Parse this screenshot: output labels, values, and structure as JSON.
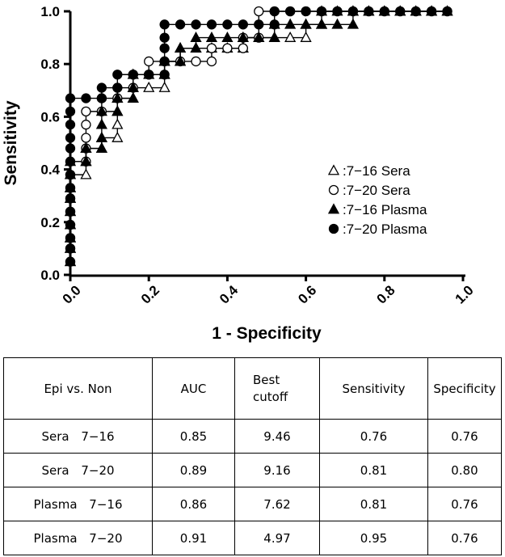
{
  "chart_data": {
    "type": "line",
    "title": "",
    "xlabel": "1 - Specificity",
    "ylabel": "Sensitivity",
    "xlim": [
      0,
      1
    ],
    "ylim": [
      0,
      1
    ],
    "x_ticks": [
      "0.0",
      "0.2",
      "0.4",
      "0.6",
      "0.8",
      "1.0"
    ],
    "y_ticks": [
      "0.0",
      "0.2",
      "0.4",
      "0.6",
      "0.8",
      "1.0"
    ],
    "grid": false,
    "legend_position": "right",
    "series": [
      {
        "name": "7-16 Sera",
        "marker": "open-triangle",
        "points": [
          [
            0,
            0.05
          ],
          [
            0,
            0.1
          ],
          [
            0,
            0.14
          ],
          [
            0,
            0.19
          ],
          [
            0,
            0.24
          ],
          [
            0,
            0.29
          ],
          [
            0,
            0.33
          ],
          [
            0,
            0.38
          ],
          [
            0.04,
            0.38
          ],
          [
            0.04,
            0.43
          ],
          [
            0.04,
            0.48
          ],
          [
            0.08,
            0.48
          ],
          [
            0.08,
            0.52
          ],
          [
            0.12,
            0.52
          ],
          [
            0.12,
            0.57
          ],
          [
            0.12,
            0.62
          ],
          [
            0.12,
            0.67
          ],
          [
            0.16,
            0.67
          ],
          [
            0.16,
            0.71
          ],
          [
            0.2,
            0.71
          ],
          [
            0.24,
            0.71
          ],
          [
            0.24,
            0.76
          ],
          [
            0.24,
            0.81
          ],
          [
            0.28,
            0.81
          ],
          [
            0.28,
            0.86
          ],
          [
            0.32,
            0.86
          ],
          [
            0.36,
            0.86
          ],
          [
            0.4,
            0.86
          ],
          [
            0.44,
            0.86
          ],
          [
            0.44,
            0.9
          ],
          [
            0.48,
            0.9
          ],
          [
            0.52,
            0.9
          ],
          [
            0.56,
            0.9
          ],
          [
            0.6,
            0.9
          ],
          [
            0.6,
            0.95
          ],
          [
            0.64,
            0.95
          ],
          [
            0.64,
            1.0
          ],
          [
            0.68,
            1.0
          ],
          [
            0.72,
            1.0
          ],
          [
            0.76,
            1.0
          ],
          [
            0.8,
            1.0
          ],
          [
            0.84,
            1.0
          ],
          [
            0.88,
            1.0
          ],
          [
            0.92,
            1.0
          ],
          [
            0.96,
            1.0
          ]
        ]
      },
      {
        "name": "7-20 Sera",
        "marker": "open-circle",
        "points": [
          [
            0,
            0.05
          ],
          [
            0,
            0.1
          ],
          [
            0,
            0.14
          ],
          [
            0,
            0.19
          ],
          [
            0,
            0.24
          ],
          [
            0,
            0.29
          ],
          [
            0,
            0.33
          ],
          [
            0,
            0.38
          ],
          [
            0,
            0.43
          ],
          [
            0.04,
            0.43
          ],
          [
            0.04,
            0.48
          ],
          [
            0.04,
            0.52
          ],
          [
            0.04,
            0.57
          ],
          [
            0.04,
            0.62
          ],
          [
            0.08,
            0.62
          ],
          [
            0.08,
            0.67
          ],
          [
            0.12,
            0.67
          ],
          [
            0.12,
            0.71
          ],
          [
            0.16,
            0.71
          ],
          [
            0.16,
            0.76
          ],
          [
            0.2,
            0.76
          ],
          [
            0.2,
            0.81
          ],
          [
            0.24,
            0.81
          ],
          [
            0.28,
            0.81
          ],
          [
            0.32,
            0.81
          ],
          [
            0.36,
            0.81
          ],
          [
            0.36,
            0.86
          ],
          [
            0.4,
            0.86
          ],
          [
            0.44,
            0.86
          ],
          [
            0.44,
            0.9
          ],
          [
            0.48,
            0.9
          ],
          [
            0.48,
            1.0
          ],
          [
            0.52,
            1.0
          ],
          [
            0.56,
            1.0
          ],
          [
            0.6,
            1.0
          ],
          [
            0.64,
            1.0
          ],
          [
            0.68,
            1.0
          ],
          [
            0.72,
            1.0
          ],
          [
            0.76,
            1.0
          ],
          [
            0.8,
            1.0
          ],
          [
            0.84,
            1.0
          ],
          [
            0.88,
            1.0
          ],
          [
            0.92,
            1.0
          ],
          [
            0.96,
            1.0
          ]
        ]
      },
      {
        "name": "7-16 Plasma",
        "marker": "filled-triangle",
        "points": [
          [
            0,
            0.05
          ],
          [
            0,
            0.1
          ],
          [
            0,
            0.14
          ],
          [
            0,
            0.19
          ],
          [
            0,
            0.24
          ],
          [
            0,
            0.29
          ],
          [
            0,
            0.33
          ],
          [
            0,
            0.38
          ],
          [
            0,
            0.43
          ],
          [
            0.04,
            0.43
          ],
          [
            0.04,
            0.48
          ],
          [
            0.08,
            0.48
          ],
          [
            0.08,
            0.52
          ],
          [
            0.08,
            0.57
          ],
          [
            0.08,
            0.62
          ],
          [
            0.12,
            0.62
          ],
          [
            0.12,
            0.67
          ],
          [
            0.16,
            0.67
          ],
          [
            0.16,
            0.71
          ],
          [
            0.16,
            0.76
          ],
          [
            0.2,
            0.76
          ],
          [
            0.24,
            0.76
          ],
          [
            0.24,
            0.81
          ],
          [
            0.28,
            0.81
          ],
          [
            0.28,
            0.86
          ],
          [
            0.32,
            0.86
          ],
          [
            0.32,
            0.9
          ],
          [
            0.36,
            0.9
          ],
          [
            0.4,
            0.9
          ],
          [
            0.44,
            0.9
          ],
          [
            0.48,
            0.9
          ],
          [
            0.52,
            0.9
          ],
          [
            0.52,
            0.95
          ],
          [
            0.56,
            0.95
          ],
          [
            0.6,
            0.95
          ],
          [
            0.64,
            0.95
          ],
          [
            0.68,
            0.95
          ],
          [
            0.72,
            0.95
          ],
          [
            0.72,
            1.0
          ],
          [
            0.76,
            1.0
          ],
          [
            0.8,
            1.0
          ],
          [
            0.84,
            1.0
          ],
          [
            0.88,
            1.0
          ],
          [
            0.92,
            1.0
          ],
          [
            0.96,
            1.0
          ]
        ]
      },
      {
        "name": "7-20 Plasma",
        "marker": "filled-circle",
        "points": [
          [
            0,
            0.05
          ],
          [
            0,
            0.1
          ],
          [
            0,
            0.14
          ],
          [
            0,
            0.19
          ],
          [
            0,
            0.24
          ],
          [
            0,
            0.29
          ],
          [
            0,
            0.33
          ],
          [
            0,
            0.38
          ],
          [
            0,
            0.43
          ],
          [
            0,
            0.48
          ],
          [
            0,
            0.52
          ],
          [
            0,
            0.57
          ],
          [
            0,
            0.62
          ],
          [
            0,
            0.67
          ],
          [
            0.04,
            0.67
          ],
          [
            0.08,
            0.67
          ],
          [
            0.08,
            0.71
          ],
          [
            0.12,
            0.71
          ],
          [
            0.12,
            0.76
          ],
          [
            0.16,
            0.76
          ],
          [
            0.2,
            0.76
          ],
          [
            0.24,
            0.76
          ],
          [
            0.24,
            0.81
          ],
          [
            0.24,
            0.86
          ],
          [
            0.24,
            0.9
          ],
          [
            0.24,
            0.95
          ],
          [
            0.28,
            0.95
          ],
          [
            0.32,
            0.95
          ],
          [
            0.36,
            0.95
          ],
          [
            0.4,
            0.95
          ],
          [
            0.44,
            0.95
          ],
          [
            0.48,
            0.95
          ],
          [
            0.52,
            0.95
          ],
          [
            0.52,
            1.0
          ],
          [
            0.56,
            1.0
          ],
          [
            0.6,
            1.0
          ],
          [
            0.64,
            1.0
          ],
          [
            0.68,
            1.0
          ],
          [
            0.72,
            1.0
          ],
          [
            0.76,
            1.0
          ],
          [
            0.8,
            1.0
          ],
          [
            0.84,
            1.0
          ],
          [
            0.88,
            1.0
          ],
          [
            0.92,
            1.0
          ],
          [
            0.96,
            1.0
          ]
        ]
      }
    ],
    "legend": [
      {
        "symbol": "open-triangle",
        "label": ":7−16 Sera"
      },
      {
        "symbol": "open-circle",
        "label": ":7−20 Sera"
      },
      {
        "symbol": "filled-triangle",
        "label": ":7−16 Plasma"
      },
      {
        "symbol": "filled-circle",
        "label": ":7−20 Plasma"
      }
    ]
  },
  "table": {
    "headers": [
      "Epi vs. Non",
      "AUC",
      "Best cutoff",
      "Sensitivity",
      "Specificity"
    ],
    "rows": [
      {
        "label": "Sera 7−16",
        "auc": "0.85",
        "cutoff": "9.46",
        "sensitivity": "0.76",
        "specificity": "0.76"
      },
      {
        "label": "Sera 7−20",
        "auc": "0.89",
        "cutoff": "9.16",
        "sensitivity": "0.81",
        "specificity": "0.80"
      },
      {
        "label": "Plasma 7−16",
        "auc": "0.86",
        "cutoff": "7.62",
        "sensitivity": "0.81",
        "specificity": "0.76"
      },
      {
        "label": "Plasma 7−20",
        "auc": "0.91",
        "cutoff": "4.97",
        "sensitivity": "0.95",
        "specificity": "0.76"
      }
    ]
  }
}
